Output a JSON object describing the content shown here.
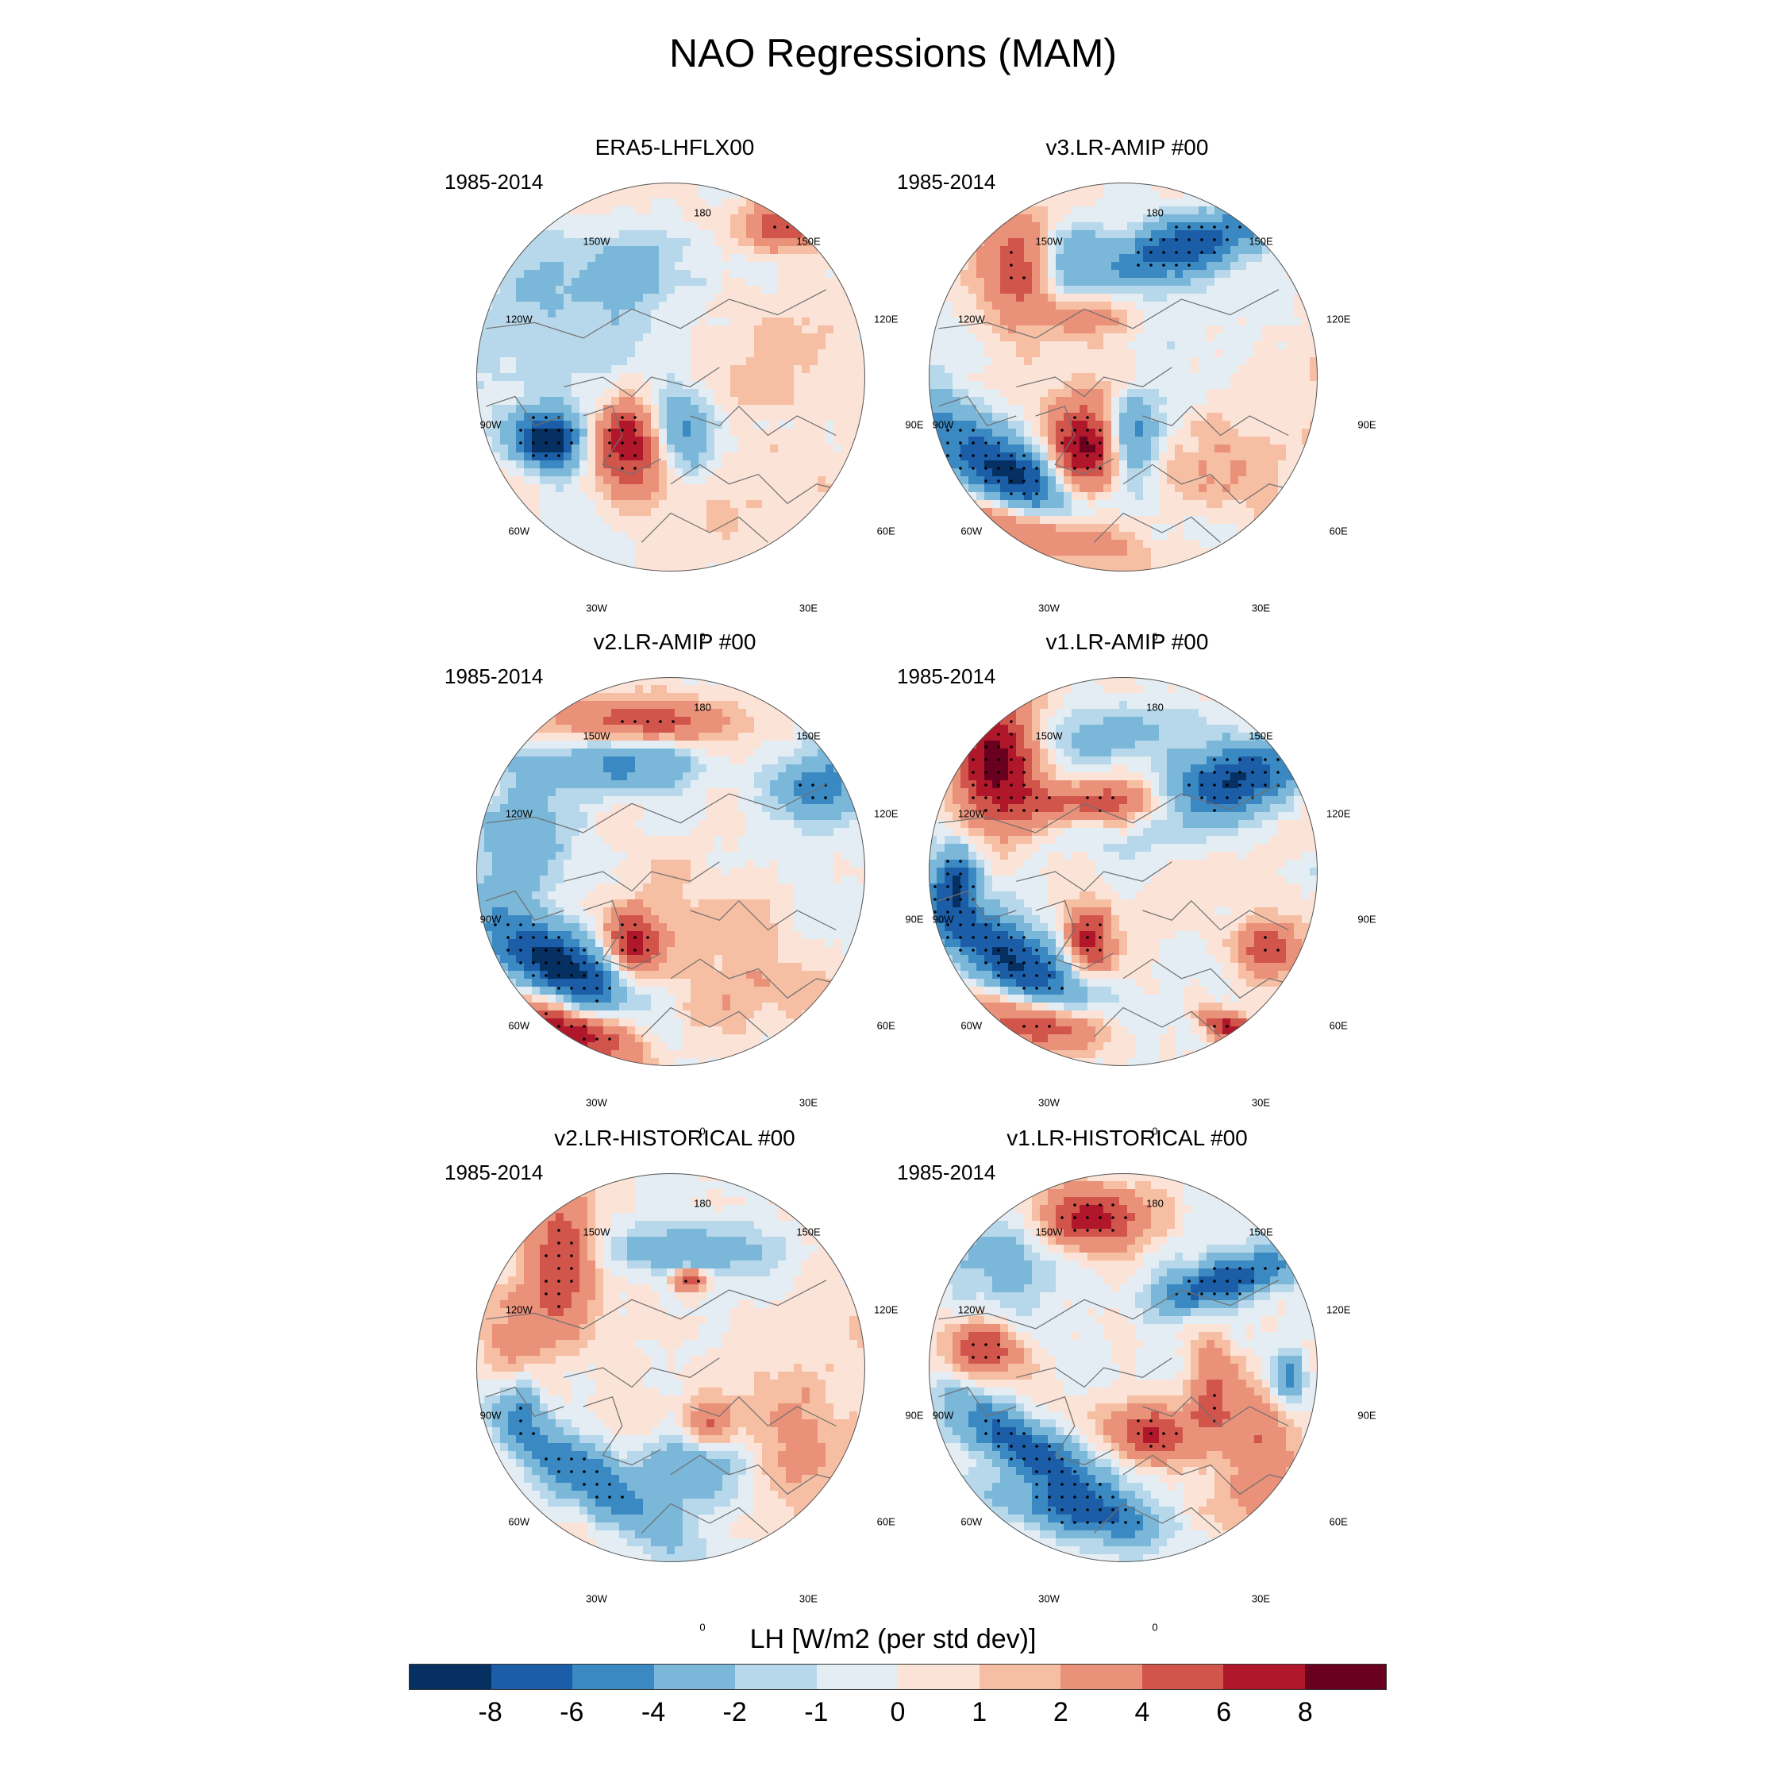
{
  "title": "NAO Regressions (MAM)",
  "panels": [
    {
      "title": "ERA5-LHFLX00",
      "period": "1985-2014",
      "pattern": "obs"
    },
    {
      "title": "v3.LR-AMIP  #00",
      "period": "1985-2014",
      "pattern": "v3amip"
    },
    {
      "title": "v2.LR-AMIP  #00",
      "period": "1985-2014",
      "pattern": "v2amip"
    },
    {
      "title": "v1.LR-AMIP  #00",
      "period": "1985-2014",
      "pattern": "v1amip"
    },
    {
      "title": "v2.LR-HISTORICAL  #00",
      "period": "1985-2014",
      "pattern": "v2hist"
    },
    {
      "title": "v1.LR-HISTORICAL  #00",
      "period": "1985-2014",
      "pattern": "v1hist"
    }
  ],
  "lon_labels": [
    "180",
    "150E",
    "120E",
    "90E",
    "60E",
    "30E",
    "0",
    "30W",
    "60W",
    "90W",
    "120W",
    "150W"
  ],
  "colorbar": {
    "title": "LH [W/m2 (per std dev)]",
    "colors": [
      "#053061",
      "#1b5ea7",
      "#3a89c2",
      "#7ab7d9",
      "#b7d8ea",
      "#e4edf3",
      "#fbe3d8",
      "#f6bea2",
      "#ea917a",
      "#d2554c",
      "#b0172a",
      "#6a0020"
    ],
    "tick_labels": [
      "-8",
      "-6",
      "-4",
      "-2",
      "-1",
      "0",
      "1",
      "2",
      "4",
      "6",
      "8"
    ]
  }
}
